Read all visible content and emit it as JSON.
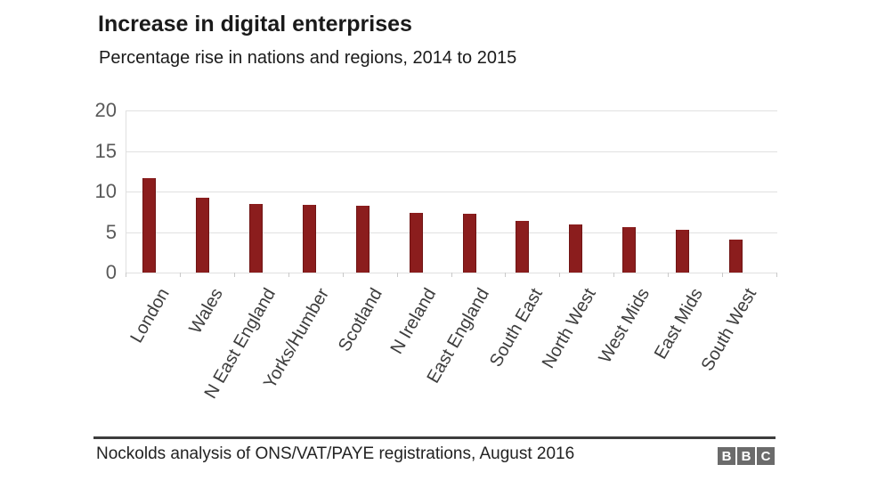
{
  "page": {
    "title": "Increase in digital enterprises",
    "subtitle": "Percentage rise in nations and regions, 2014 to 2015"
  },
  "chart_data": {
    "type": "bar",
    "title": "Increase in digital enterprises",
    "subtitle": "Percentage rise in nations and regions, 2014 to 2015",
    "categories": [
      "London",
      "Wales",
      "N East England",
      "Yorks/Humber",
      "Scotland",
      "N Ireland",
      "East England",
      "South East",
      "North West",
      "West Mids",
      "East Mids",
      "South West"
    ],
    "values": [
      11.6,
      9.2,
      8.5,
      8.4,
      8.2,
      7.4,
      7.3,
      6.4,
      5.9,
      5.6,
      5.3,
      4.1
    ],
    "unit": "percent",
    "xlabel": "",
    "ylabel": "",
    "ylim": [
      0,
      20
    ],
    "yticks": [
      20,
      15,
      10,
      5,
      0
    ],
    "grid": true,
    "legend": "none",
    "bar_color": "#8b1d1d",
    "x_label_rotation_deg": -60
  },
  "footer": {
    "source": "Nockolds analysis of ONS/VAT/PAYE registrations, August 2016",
    "logo": {
      "name": "BBC",
      "letters": [
        "B",
        "B",
        "C"
      ],
      "block_color": "#6b6b6b",
      "letter_color": "#ffffff"
    }
  },
  "colors": {
    "background": "#ffffff",
    "bar": "#8b1d1d",
    "gridline": "#e0e0e0",
    "axis_text": "#595959",
    "category_text": "#3d3d3d",
    "title_text": "#1a1a1a",
    "footer_rule": "#3d3d3d",
    "footer_text": "#222222"
  }
}
